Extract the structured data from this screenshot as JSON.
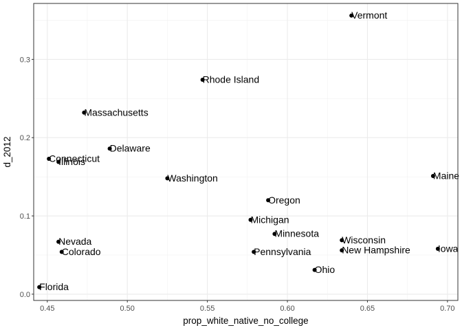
{
  "chart_data": {
    "type": "scatter",
    "title": "",
    "xlabel": "prop_white_native_no_college",
    "ylabel": "d_2012",
    "xlim": [
      0.4415,
      0.7065
    ],
    "ylim": [
      -0.008,
      0.3715
    ],
    "x_ticks": [
      0.45,
      0.5,
      0.55,
      0.6,
      0.65,
      0.7
    ],
    "x_tick_labels": [
      "0.45",
      "0.50",
      "0.55",
      "0.60",
      "0.65",
      "0.70"
    ],
    "y_ticks": [
      0.0,
      0.1,
      0.2,
      0.3
    ],
    "y_tick_labels": [
      "0.0",
      "0.1",
      "0.2",
      "0.3"
    ],
    "grid": true,
    "points": [
      {
        "label": "Vermont",
        "x": 0.64,
        "y": 0.356
      },
      {
        "label": "Rhode Island",
        "x": 0.547,
        "y": 0.274
      },
      {
        "label": "Massachusetts",
        "x": 0.473,
        "y": 0.232
      },
      {
        "label": "Delaware",
        "x": 0.489,
        "y": 0.186
      },
      {
        "label": "Connecticut",
        "x": 0.451,
        "y": 0.173
      },
      {
        "label": "Illinois",
        "x": 0.457,
        "y": 0.169
      },
      {
        "label": "Maine",
        "x": 0.691,
        "y": 0.151
      },
      {
        "label": "Washington",
        "x": 0.525,
        "y": 0.148
      },
      {
        "label": "Oregon",
        "x": 0.588,
        "y": 0.12
      },
      {
        "label": "Michigan",
        "x": 0.577,
        "y": 0.095
      },
      {
        "label": "Minnesota",
        "x": 0.592,
        "y": 0.077
      },
      {
        "label": "Wisconsin",
        "x": 0.634,
        "y": 0.069
      },
      {
        "label": "Nevada",
        "x": 0.457,
        "y": 0.067
      },
      {
        "label": "Iowa",
        "x": 0.694,
        "y": 0.058
      },
      {
        "label": "New Hampshire",
        "x": 0.634,
        "y": 0.056
      },
      {
        "label": "Pennsylvania",
        "x": 0.579,
        "y": 0.054
      },
      {
        "label": "Colorado",
        "x": 0.459,
        "y": 0.054
      },
      {
        "label": "Ohio",
        "x": 0.617,
        "y": 0.031
      },
      {
        "label": "Florida",
        "x": 0.445,
        "y": 0.009
      }
    ]
  }
}
